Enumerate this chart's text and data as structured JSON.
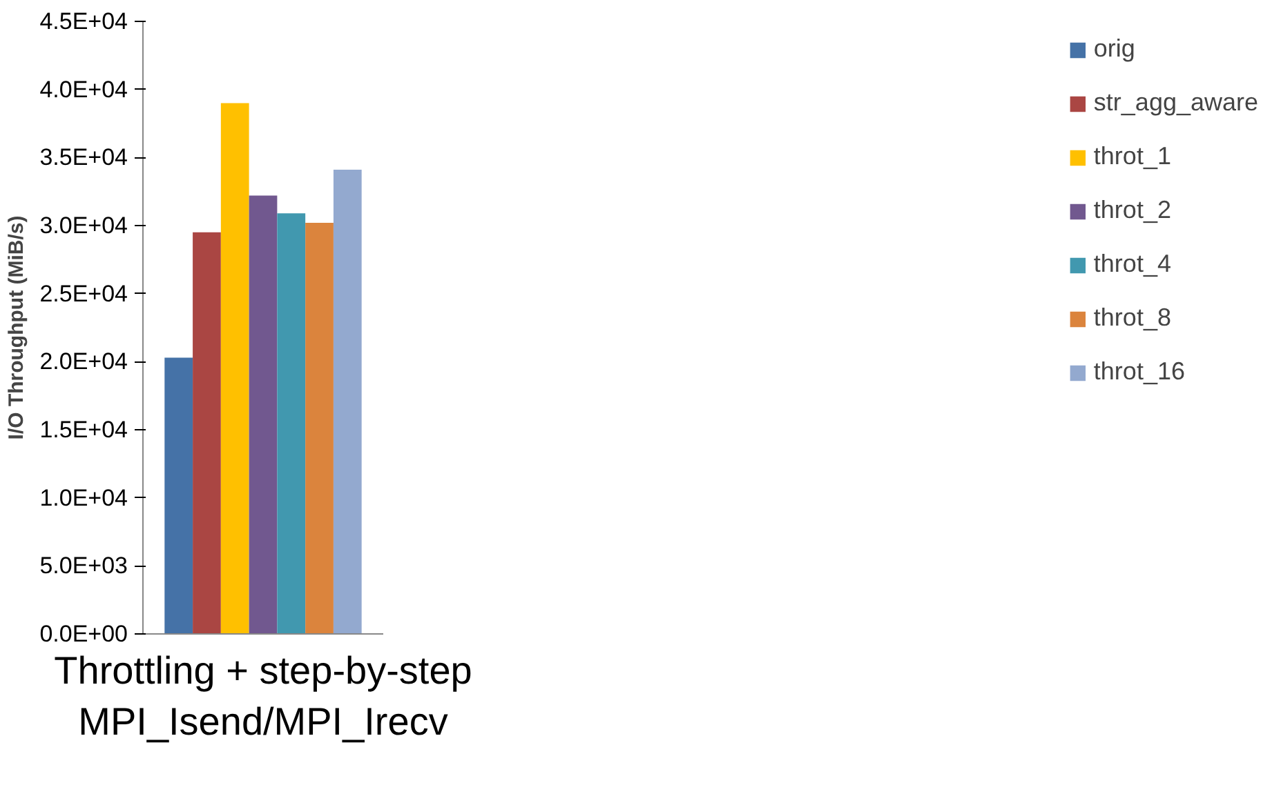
{
  "chart_data": {
    "type": "bar",
    "ylabel": "I/O Throughput (MiB/s)",
    "categories": [
      "Throttling + step-by-step\nMPI_Isend/MPI_Irecv"
    ],
    "series": [
      {
        "name": "orig",
        "color": "#4572a7",
        "values": [
          20300
        ]
      },
      {
        "name": "str_agg_aware",
        "color": "#aa4643",
        "values": [
          29500
        ]
      },
      {
        "name": "throt_1",
        "color": "#ffc000",
        "values": [
          39000
        ]
      },
      {
        "name": "throt_2",
        "color": "#71588f",
        "values": [
          32200
        ]
      },
      {
        "name": "throt_4",
        "color": "#4198af",
        "values": [
          30900
        ]
      },
      {
        "name": "throt_8",
        "color": "#db843d",
        "values": [
          30200
        ]
      },
      {
        "name": "throt_16",
        "color": "#93a9cf",
        "values": [
          34100
        ]
      }
    ],
    "ylim": [
      0,
      45000
    ],
    "yticks": [
      {
        "value": 0,
        "label": "0.0E+00"
      },
      {
        "value": 5000,
        "label": "5.0E+03"
      },
      {
        "value": 10000,
        "label": "1.0E+04"
      },
      {
        "value": 15000,
        "label": "1.5E+04"
      },
      {
        "value": 20000,
        "label": "2.0E+04"
      },
      {
        "value": 25000,
        "label": "2.5E+04"
      },
      {
        "value": 30000,
        "label": "3.0E+04"
      },
      {
        "value": 35000,
        "label": "3.5E+04"
      },
      {
        "value": 40000,
        "label": "4.0E+04"
      },
      {
        "value": 45000,
        "label": "4.5E+04"
      }
    ],
    "grid": false,
    "legend": "right"
  }
}
